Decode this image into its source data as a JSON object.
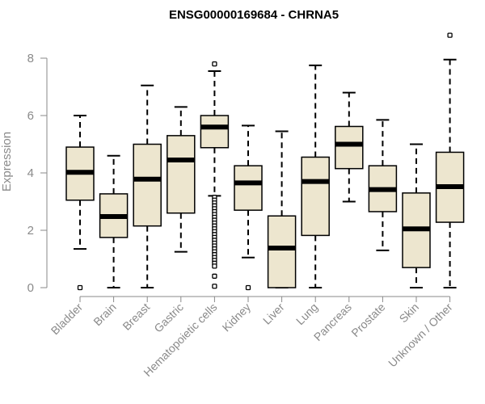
{
  "chart_data": {
    "type": "boxplot",
    "title": "ENSG00000169684 - CHRNA5",
    "xlabel": "",
    "ylabel": "Expression",
    "ylim": [
      0,
      8.8
    ],
    "yticks": [
      0,
      2,
      4,
      6,
      8
    ],
    "grid": false,
    "legend": "none",
    "colors": {
      "box_fill": "#ede6cf",
      "stroke": "#000000",
      "axis": "#8a8a8a"
    },
    "categories": [
      "Bladder",
      "Brain",
      "Breast",
      "Gastric",
      "Hematopoietic cells",
      "Kidney",
      "Liver",
      "Lung",
      "Pancreas",
      "Prostate",
      "Skin",
      "Unknown / Other"
    ],
    "boxes": [
      {
        "category": "Bladder",
        "whisker_low": 1.35,
        "q1": 3.05,
        "median": 4.02,
        "q3": 4.9,
        "whisker_high": 6.0,
        "outliers": [
          0.0
        ]
      },
      {
        "category": "Brain",
        "whisker_low": 0.0,
        "q1": 1.75,
        "median": 2.48,
        "q3": 3.27,
        "whisker_high": 4.6,
        "outliers": []
      },
      {
        "category": "Breast",
        "whisker_low": 0.0,
        "q1": 2.15,
        "median": 3.78,
        "q3": 5.0,
        "whisker_high": 7.05,
        "outliers": []
      },
      {
        "category": "Gastric",
        "whisker_low": 1.25,
        "q1": 2.6,
        "median": 4.45,
        "q3": 5.3,
        "whisker_high": 6.3,
        "outliers": []
      },
      {
        "category": "Hematopoietic cells",
        "whisker_low": 3.2,
        "q1": 4.88,
        "median": 5.6,
        "q3": 6.0,
        "whisker_high": 7.55,
        "outliers": [
          7.8,
          3.15,
          3.05,
          2.95,
          2.85,
          2.75,
          2.65,
          2.55,
          2.45,
          2.35,
          2.25,
          2.15,
          2.05,
          1.95,
          1.85,
          1.75,
          1.65,
          1.55,
          1.45,
          1.35,
          1.25,
          1.15,
          1.05,
          0.95,
          0.85,
          0.75,
          0.4,
          0.05
        ]
      },
      {
        "category": "Kidney",
        "whisker_low": 1.05,
        "q1": 2.7,
        "median": 3.65,
        "q3": 4.25,
        "whisker_high": 5.65,
        "outliers": [
          0.0
        ]
      },
      {
        "category": "Liver",
        "whisker_low": 0.0,
        "q1": 0.0,
        "median": 1.38,
        "q3": 2.5,
        "whisker_high": 5.45,
        "outliers": []
      },
      {
        "category": "Lung",
        "whisker_low": 0.0,
        "q1": 1.82,
        "median": 3.7,
        "q3": 4.55,
        "whisker_high": 7.75,
        "outliers": []
      },
      {
        "category": "Pancreas",
        "whisker_low": 3.0,
        "q1": 4.15,
        "median": 5.0,
        "q3": 5.62,
        "whisker_high": 6.8,
        "outliers": []
      },
      {
        "category": "Prostate",
        "whisker_low": 1.3,
        "q1": 2.65,
        "median": 3.42,
        "q3": 4.25,
        "whisker_high": 5.85,
        "outliers": []
      },
      {
        "category": "Skin",
        "whisker_low": 0.0,
        "q1": 0.7,
        "median": 2.05,
        "q3": 3.3,
        "whisker_high": 5.0,
        "outliers": []
      },
      {
        "category": "Unknown / Other",
        "whisker_low": 0.0,
        "q1": 2.28,
        "median": 3.52,
        "q3": 4.72,
        "whisker_high": 7.95,
        "outliers": [
          8.8
        ]
      }
    ]
  }
}
